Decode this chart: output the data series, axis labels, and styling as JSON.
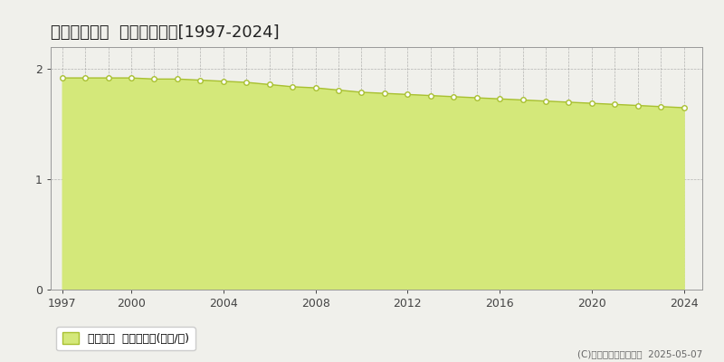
{
  "title": "舞鶴市佐波賀  基準地価推移[1997-2024]",
  "years": [
    1997,
    1998,
    1999,
    2000,
    2001,
    2002,
    2003,
    2004,
    2005,
    2006,
    2007,
    2008,
    2009,
    2010,
    2011,
    2012,
    2013,
    2014,
    2015,
    2016,
    2017,
    2018,
    2019,
    2020,
    2021,
    2022,
    2023,
    2024
  ],
  "values": [
    1.92,
    1.92,
    1.92,
    1.92,
    1.91,
    1.91,
    1.9,
    1.89,
    1.88,
    1.86,
    1.84,
    1.83,
    1.81,
    1.79,
    1.78,
    1.77,
    1.76,
    1.75,
    1.74,
    1.73,
    1.72,
    1.71,
    1.7,
    1.69,
    1.68,
    1.67,
    1.66,
    1.65
  ],
  "line_color": "#a8c030",
  "fill_color": "#d4e87a",
  "fill_alpha": 1.0,
  "marker_color": "white",
  "marker_edge_color": "#a8c030",
  "bg_color": "#f0f0eb",
  "plot_bg_color": "#f0f0eb",
  "grid_color": "#999999",
  "yticks": [
    0,
    1,
    2
  ],
  "xlim": [
    1996.5,
    2024.8
  ],
  "ylim": [
    0,
    2.2
  ],
  "xticks": [
    1997,
    2000,
    2004,
    2008,
    2012,
    2016,
    2020,
    2024
  ],
  "legend_label": "基準地価  平均坪単価(万円/坪)",
  "copyright": "(C)土地価格ドットコム  2025-05-07",
  "title_fontsize": 13,
  "legend_fontsize": 9,
  "tick_fontsize": 9
}
